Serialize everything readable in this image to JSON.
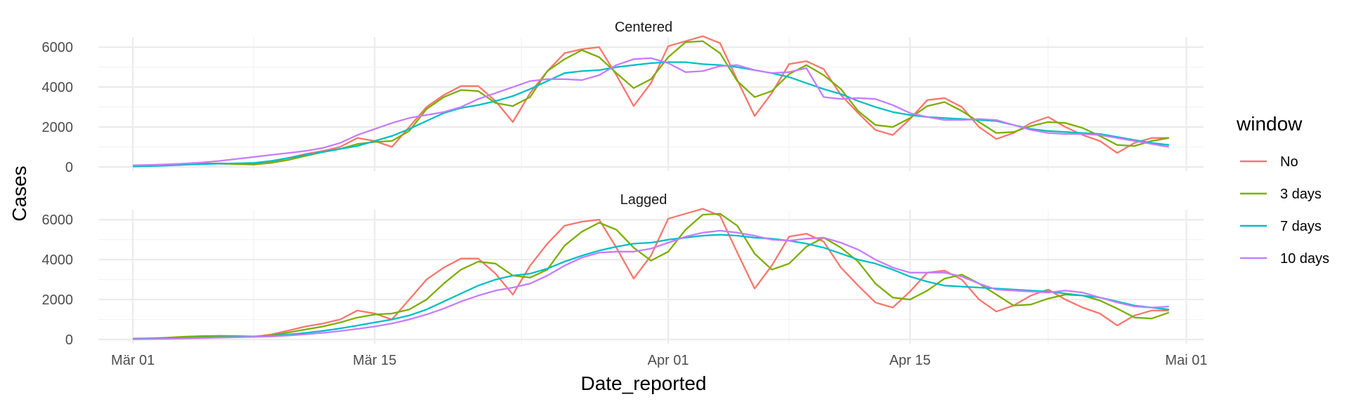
{
  "chart_data": {
    "type": "line",
    "xlabel": "Date_reported",
    "ylabel": "Cases",
    "x_ticks": [
      "Mär 01",
      "Mär 15",
      "Apr 01",
      "Apr 15",
      "Mai 01"
    ],
    "y_ticks": [
      0,
      2000,
      4000,
      6000
    ],
    "ylim": [
      0,
      6500
    ],
    "xlim": [
      "2020-02-28",
      "2020-05-02"
    ],
    "grid": true,
    "legend": {
      "title": "window",
      "position": "right",
      "entries": [
        "No",
        "3 days",
        "7 days",
        "10 days"
      ]
    },
    "colors": {
      "No": "#F8766D",
      "3 days": "#7CAE00",
      "7 days": "#00BFC4",
      "10 days": "#C77CFF"
    },
    "x": [
      "2020-03-01",
      "2020-03-02",
      "2020-03-03",
      "2020-03-04",
      "2020-03-05",
      "2020-03-06",
      "2020-03-07",
      "2020-03-08",
      "2020-03-09",
      "2020-03-10",
      "2020-03-11",
      "2020-03-12",
      "2020-03-13",
      "2020-03-14",
      "2020-03-15",
      "2020-03-16",
      "2020-03-17",
      "2020-03-18",
      "2020-03-19",
      "2020-03-20",
      "2020-03-21",
      "2020-03-22",
      "2020-03-23",
      "2020-03-24",
      "2020-03-25",
      "2020-03-26",
      "2020-03-27",
      "2020-03-28",
      "2020-03-29",
      "2020-03-30",
      "2020-03-31",
      "2020-04-01",
      "2020-04-02",
      "2020-04-03",
      "2020-04-04",
      "2020-04-05",
      "2020-04-06",
      "2020-04-07",
      "2020-04-08",
      "2020-04-09",
      "2020-04-10",
      "2020-04-11",
      "2020-04-12",
      "2020-04-13",
      "2020-04-14",
      "2020-04-15",
      "2020-04-16",
      "2020-04-17",
      "2020-04-18",
      "2020-04-19",
      "2020-04-20",
      "2020-04-21",
      "2020-04-22",
      "2020-04-23",
      "2020-04-24",
      "2020-04-25",
      "2020-04-26",
      "2020-04-27",
      "2020-04-28",
      "2020-04-29",
      "2020-04-30"
    ],
    "panels": [
      {
        "title": "Centered",
        "series": [
          {
            "name": "No",
            "values": [
              50,
              60,
              80,
              120,
              150,
              180,
              160,
              130,
              250,
              450,
              650,
              800,
              1000,
              1450,
              1300,
              1000,
              2000,
              3000,
              3600,
              4050,
              4050,
              3300,
              2250,
              3700,
              4800,
              5700,
              5900,
              6000,
              4600,
              3050,
              4200,
              6050,
              6300,
              6550,
              6200,
              4350,
              2550,
              3700,
              5150,
              5300,
              4900,
              3600,
              2700,
              1850,
              1600,
              2400,
              3350,
              3450,
              3000,
              2000,
              1400,
              1700,
              2200,
              2500,
              2000,
              1600,
              1300,
              700,
              1200,
              1450,
              1450
            ]
          },
          {
            "name": "3 days",
            "values": [
              60,
              80,
              110,
              150,
              170,
              160,
              140,
              120,
              200,
              350,
              550,
              750,
              900,
              1150,
              1250,
              1300,
              1800,
              2900,
              3500,
              3850,
              3800,
              3200,
              3050,
              3500,
              4800,
              5400,
              5850,
              5500,
              4700,
              3950,
              4400,
              5500,
              6250,
              6300,
              5700,
              4300,
              3500,
              3800,
              4650,
              5100,
              4600,
              3900,
              2800,
              2100,
              2000,
              2450,
              3050,
              3250,
              2800,
              2250,
              1700,
              1750,
              2050,
              2250,
              2200,
              1950,
              1550,
              1100,
              1050,
              1300,
              1450
            ]
          },
          {
            "name": "7 days",
            "values": [
              20,
              40,
              70,
              110,
              140,
              160,
              180,
              200,
              300,
              450,
              600,
              750,
              900,
              1050,
              1300,
              1550,
              1900,
              2300,
              2700,
              2950,
              3100,
              3300,
              3550,
              3900,
              4300,
              4700,
              4800,
              4850,
              5000,
              5100,
              5200,
              5250,
              5250,
              5150,
              5100,
              5000,
              4850,
              4700,
              4500,
              4200,
              3900,
              3650,
              3300,
              3000,
              2750,
              2600,
              2500,
              2450,
              2400,
              2350,
              2300,
              2100,
              1900,
              1800,
              1750,
              1700,
              1650,
              1500,
              1350,
              1200,
              1100
            ]
          },
          {
            "name": "10 days",
            "values": [
              80,
              100,
              130,
              170,
              220,
              300,
              400,
              500,
              600,
              700,
              800,
              950,
              1200,
              1600,
              1900,
              2200,
              2450,
              2600,
              2750,
              3000,
              3400,
              3700,
              4000,
              4300,
              4400,
              4400,
              4350,
              4600,
              5100,
              5400,
              5450,
              5200,
              4750,
              4800,
              5050,
              5100,
              4850,
              4700,
              4750,
              4950,
              3500,
              3400,
              3450,
              3400,
              3100,
              2700,
              2500,
              2350,
              2350,
              2400,
              2350,
              2100,
              1850,
              1700,
              1650,
              1650,
              1600,
              1450,
              1300,
              1150,
              1000
            ]
          }
        ]
      },
      {
        "title": "Lagged",
        "series": [
          {
            "name": "No",
            "values": [
              50,
              60,
              80,
              120,
              150,
              180,
              160,
              130,
              250,
              450,
              650,
              800,
              1000,
              1450,
              1300,
              1000,
              2000,
              3000,
              3600,
              4050,
              4050,
              3300,
              2250,
              3700,
              4800,
              5700,
              5900,
              6000,
              4600,
              3050,
              4200,
              6050,
              6300,
              6550,
              6200,
              4350,
              2550,
              3700,
              5150,
              5300,
              4900,
              3600,
              2700,
              1850,
              1600,
              2400,
              3350,
              3450,
              3000,
              2000,
              1400,
              1700,
              2200,
              2500,
              2000,
              1600,
              1300,
              700,
              1200,
              1450,
              1450
            ]
          },
          {
            "name": "3 days",
            "values": [
              30,
              50,
              90,
              140,
              170,
              180,
              170,
              150,
              200,
              350,
              500,
              650,
              850,
              1100,
              1250,
              1300,
              1500,
              2000,
              2800,
              3500,
              3900,
              3800,
              3200,
              3100,
              3500,
              4700,
              5400,
              5850,
              5500,
              4600,
              3950,
              4400,
              5500,
              6250,
              6300,
              5700,
              4300,
              3500,
              3800,
              4650,
              5100,
              4600,
              3900,
              2800,
              2100,
              2000,
              2450,
              3050,
              3250,
              2800,
              2250,
              1700,
              1750,
              2050,
              2250,
              2200,
              1950,
              1550,
              1100,
              1050,
              1350
            ]
          },
          {
            "name": "7 days",
            "values": [
              20,
              30,
              50,
              70,
              90,
              110,
              130,
              140,
              180,
              250,
              330,
              430,
              550,
              700,
              850,
              1000,
              1200,
              1500,
              1900,
              2300,
              2700,
              3000,
              3200,
              3300,
              3550,
              3900,
              4200,
              4450,
              4650,
              4800,
              4850,
              5000,
              5100,
              5200,
              5250,
              5200,
              5100,
              5050,
              4950,
              4800,
              4600,
              4300,
              4000,
              3800,
              3500,
              3150,
              2900,
              2700,
              2650,
              2600,
              2550,
              2500,
              2450,
              2400,
              2300,
              2200,
              2100,
              1900,
              1700,
              1600,
              1500
            ]
          },
          {
            "name": "10 days",
            "values": [
              10,
              20,
              30,
              50,
              70,
              90,
              110,
              130,
              150,
              200,
              260,
              330,
              420,
              530,
              650,
              800,
              1000,
              1250,
              1550,
              1900,
              2200,
              2450,
              2600,
              2800,
              3200,
              3700,
              4100,
              4350,
              4400,
              4400,
              4550,
              4850,
              5150,
              5350,
              5450,
              5350,
              5200,
              5000,
              4950,
              5050,
              5100,
              4850,
              4500,
              4000,
              3600,
              3350,
              3350,
              3350,
              3150,
              2800,
              2500,
              2450,
              2400,
              2350,
              2450,
              2350,
              2100,
              1850,
              1650,
              1600,
              1650
            ]
          }
        ]
      }
    ]
  }
}
